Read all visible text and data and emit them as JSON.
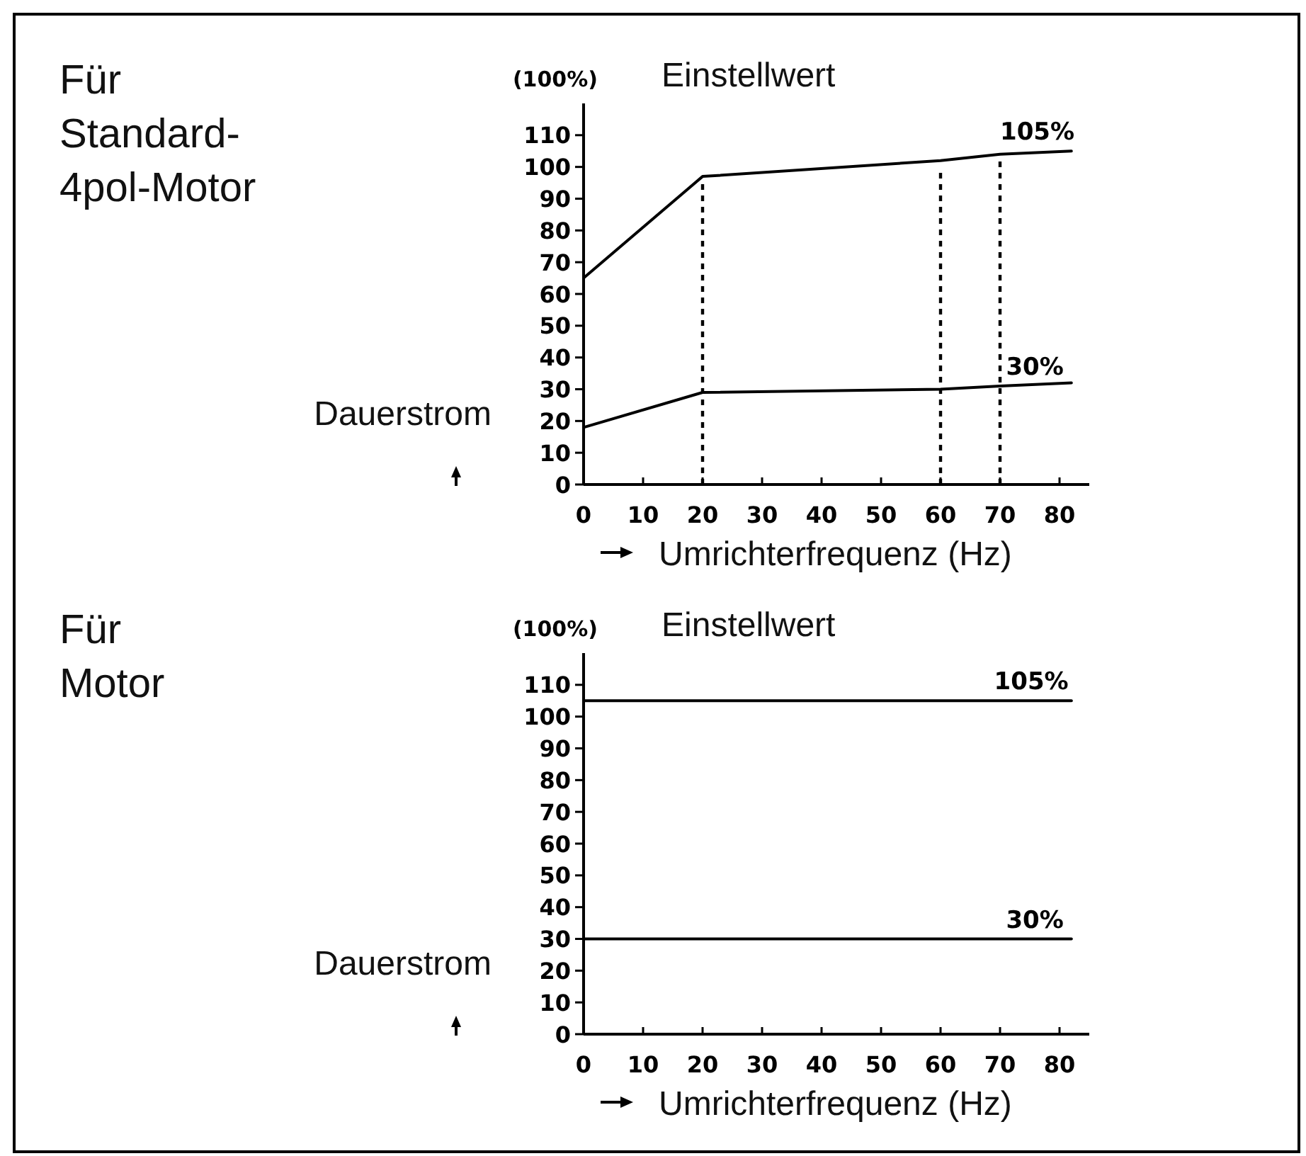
{
  "chart_data": [
    {
      "type": "line",
      "ylabel": "(100%)",
      "xlabel": "Umrichterfrequenz (Hz)",
      "annotations": [
        "Für\nStandard-\n4pol-Motor",
        "Einstellwert",
        "Dauerstrom",
        {
          "text": "105%",
          "x": 70,
          "y": 105
        },
        {
          "text": "30%",
          "x": 71,
          "y": 31
        }
      ],
      "x": [
        0,
        20,
        60,
        70,
        82
      ],
      "series": [
        {
          "color": "#000000",
          "values": [
            65,
            97,
            102,
            104,
            105
          ]
        },
        {
          "color": "#000000",
          "values": [
            18,
            29,
            30,
            31,
            32
          ]
        }
      ],
      "xlim": [
        0,
        85
      ],
      "ylim": [
        0,
        120
      ],
      "xticks": [
        0,
        10,
        20,
        30,
        40,
        50,
        60,
        70,
        80
      ],
      "yticks": [
        0,
        10,
        20,
        30,
        40,
        50,
        60,
        70,
        80,
        90,
        100,
        110
      ],
      "ref_lines": [
        {
          "axis": "x",
          "value": 20,
          "color": "#000000",
          "line_style": "dashed"
        },
        {
          "axis": "x",
          "value": 60,
          "color": "#000000",
          "line_style": "dashed"
        },
        {
          "axis": "x",
          "value": 70,
          "color": "#000000",
          "line_style": "dashed"
        }
      ],
      "line_style": "solid"
    },
    {
      "type": "line",
      "ylabel": "(100%)",
      "xlabel": "Umrichterfrequenz (Hz)",
      "annotations": [
        "Für\nMotor",
        "Einstellwert",
        "Dauerstrom",
        {
          "text": "105%",
          "x": 69,
          "y": 105
        },
        {
          "text": "30%",
          "x": 71,
          "y": 30
        }
      ],
      "x": [
        0,
        82
      ],
      "series": [
        {
          "color": "#000000",
          "values": [
            105,
            105
          ]
        },
        {
          "color": "#000000",
          "values": [
            30,
            30
          ]
        }
      ],
      "xlim": [
        0,
        85
      ],
      "ylim": [
        0,
        120
      ],
      "xticks": [
        0,
        10,
        20,
        30,
        40,
        50,
        60,
        70,
        80
      ],
      "yticks": [
        0,
        10,
        20,
        30,
        40,
        50,
        60,
        70,
        80,
        90,
        100,
        110
      ],
      "line_style": "solid"
    }
  ]
}
